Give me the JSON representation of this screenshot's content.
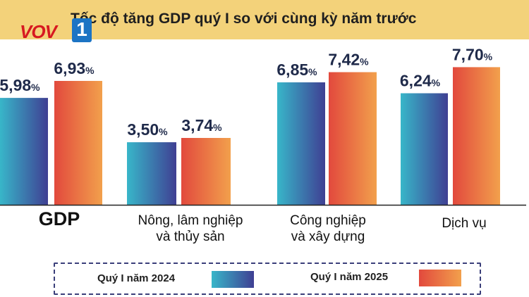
{
  "logo": {
    "brand": "VOV",
    "channel": "1"
  },
  "chart_data": {
    "type": "bar",
    "title": "Tốc độ tăng GDP quý I so với cùng kỳ năm trước",
    "categories": [
      "GDP",
      "Nông, lâm nghiệp và thủy sản",
      "Công nghiệp và xây dựng",
      "Dịch vụ"
    ],
    "category_lines": [
      [
        "GDP"
      ],
      [
        "Nông, lâm nghiệp",
        "và thủy sản"
      ],
      [
        "Công nghiệp",
        "và xây dựng"
      ],
      [
        "Dịch vụ"
      ]
    ],
    "series": [
      {
        "name": "Quý I năm 2024",
        "values": [
          5.98,
          3.5,
          6.85,
          6.24
        ],
        "labels": [
          "5,98",
          "3,50",
          "6,85",
          "6,24"
        ]
      },
      {
        "name": "Quý I năm 2025",
        "values": [
          6.93,
          3.74,
          7.42,
          7.7
        ],
        "labels": [
          "6,93",
          "3,74",
          "7,42",
          "7,70"
        ]
      }
    ],
    "unit": "%",
    "ylim": [
      0,
      9
    ],
    "grid": false,
    "legend_position": "bottom"
  }
}
